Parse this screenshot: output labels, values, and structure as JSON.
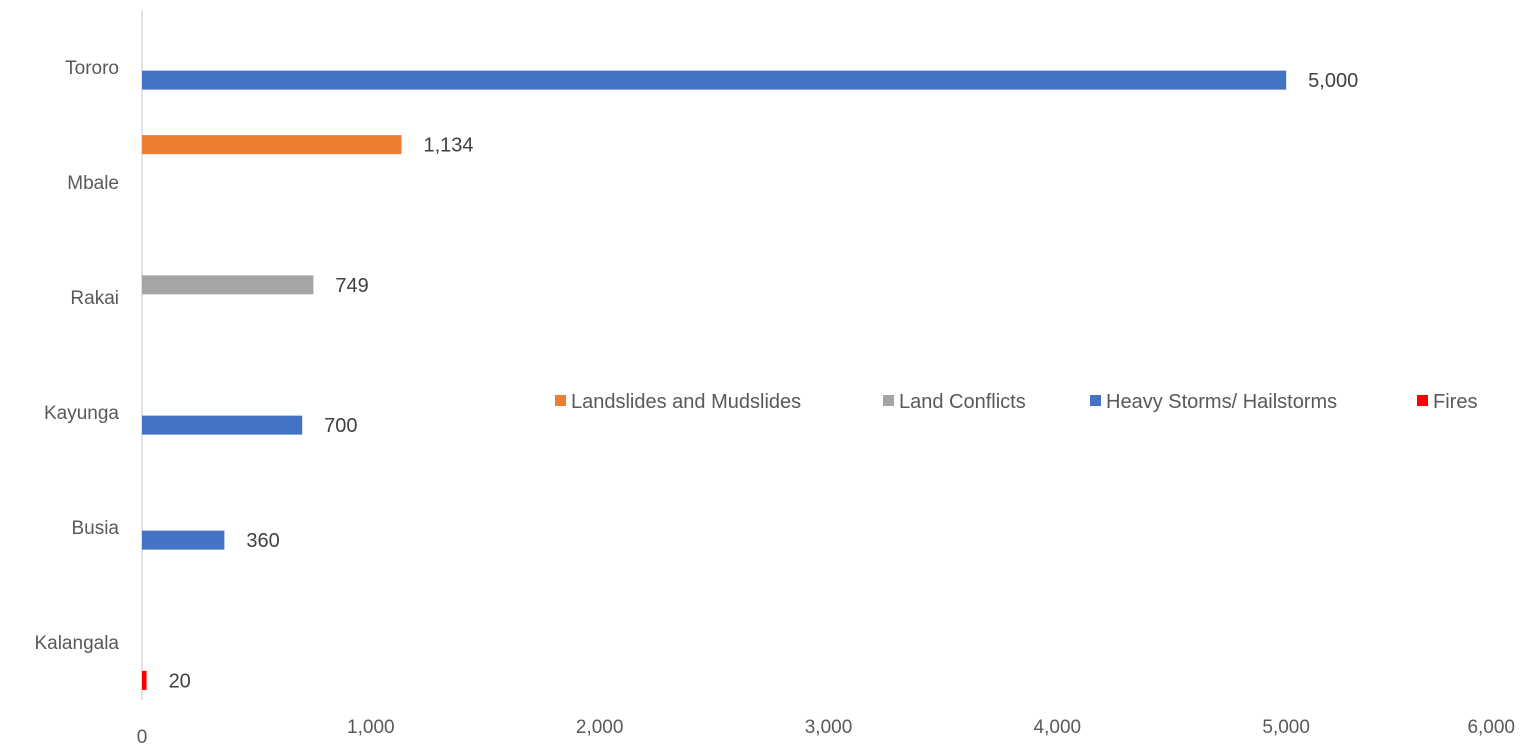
{
  "chart_data": {
    "type": "bar",
    "orientation": "horizontal",
    "categories": [
      "Tororo",
      "Mbale",
      "Rakai",
      "Kayunga",
      "Busia",
      "Kalangala"
    ],
    "series": [
      {
        "name": "Landslides and Mudslides",
        "color": "#ED7D31",
        "values": [
          null,
          1134,
          null,
          null,
          null,
          null
        ]
      },
      {
        "name": "Land Conflicts",
        "color": "#A5A5A5",
        "values": [
          null,
          null,
          749,
          null,
          null,
          null
        ]
      },
      {
        "name": "Heavy Storms/ Hailstorms",
        "color": "#4472C4",
        "values": [
          5000,
          null,
          null,
          700,
          360,
          null
        ]
      },
      {
        "name": "Fires",
        "color": "#FF0000",
        "values": [
          null,
          null,
          null,
          null,
          null,
          20
        ]
      }
    ],
    "data_labels": [
      "5,000",
      "1,134",
      "749",
      "700",
      "360",
      "20"
    ],
    "xticks": [
      "0",
      "1,000",
      "2,000",
      "3,000",
      "4,000",
      "5,000",
      "6,000"
    ],
    "xlim": [
      0,
      6000
    ],
    "grid": false,
    "legend_position": "right"
  }
}
